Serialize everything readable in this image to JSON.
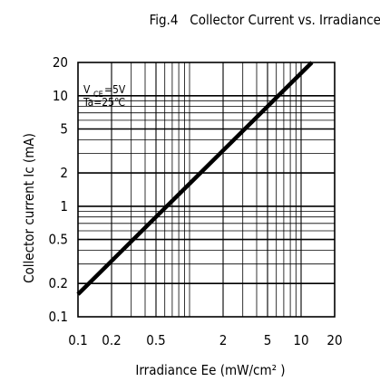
{
  "chart_data": {
    "type": "line",
    "title": "Fig.4   Collector Current vs. Irradiance",
    "xlabel": "Irradiance Ee (mW/cm² )",
    "ylabel": "Collector current Ic (mA)",
    "x_scale": "log",
    "y_scale": "log",
    "xlim": [
      0.1,
      20
    ],
    "ylim": [
      0.1,
      20
    ],
    "grid": true,
    "x_tick_labels": [
      {
        "value": 0.1,
        "label": "0.1"
      },
      {
        "value": 0.2,
        "label": "0.2"
      },
      {
        "value": 0.5,
        "label": "0.5"
      },
      {
        "value": 2,
        "label": "2"
      },
      {
        "value": 5,
        "label": "5"
      },
      {
        "value": 10,
        "label": "10"
      },
      {
        "value": 20,
        "label": "20"
      }
    ],
    "y_tick_labels": [
      {
        "value": 0.1,
        "label": "0.1"
      },
      {
        "value": 0.2,
        "label": "0.2"
      },
      {
        "value": 0.5,
        "label": "0.5"
      },
      {
        "value": 1,
        "label": "1"
      },
      {
        "value": 2,
        "label": "2"
      },
      {
        "value": 5,
        "label": "5"
      },
      {
        "value": 10,
        "label": "10"
      },
      {
        "value": 20,
        "label": "20"
      }
    ],
    "annotations": [
      "V CE=5V",
      "Ta=25℃"
    ],
    "annotation_parts": {
      "vce_main": "V",
      "vce_sub": "CE",
      "vce_value": "=5V",
      "ta": "Ta=25℃"
    },
    "series": [
      {
        "points": [
          {
            "x": 0.1,
            "y": 0.16
          },
          {
            "x": 0.5,
            "y": 0.8
          },
          {
            "x": 1,
            "y": 1.6
          },
          {
            "x": 5,
            "y": 8
          },
          {
            "x": 12.5,
            "y": 20
          }
        ]
      }
    ]
  }
}
